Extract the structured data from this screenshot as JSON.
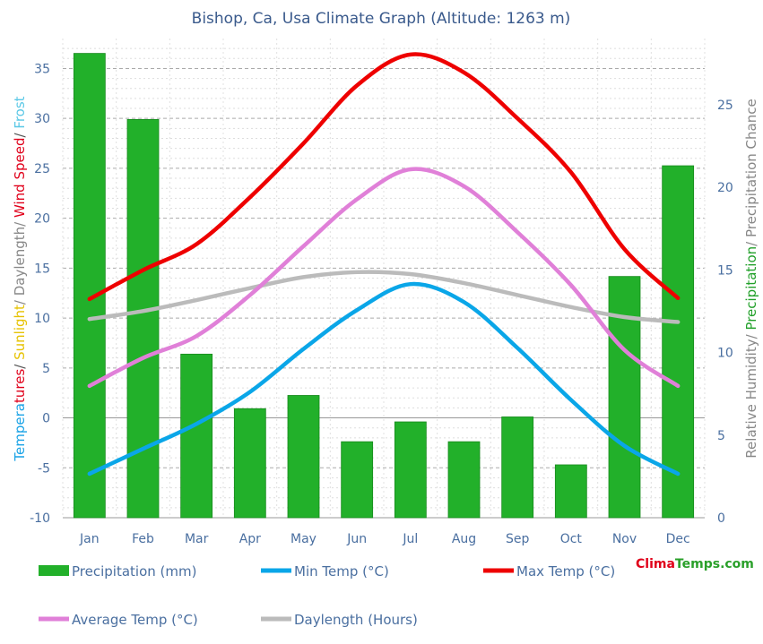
{
  "chart_data": {
    "type": "bar+line",
    "title": "Bishop, Ca, Usa Climate Graph (Altitude: 1263 m)",
    "categories": [
      "Jan",
      "Feb",
      "Mar",
      "Apr",
      "May",
      "Jun",
      "Jul",
      "Aug",
      "Sep",
      "Oct",
      "Nov",
      "Dec"
    ],
    "left_axis": {
      "label_parts": [
        {
          "text": "Tempera",
          "color": "#1aa3e6"
        },
        {
          "text": "tures",
          "color": "#e0001a"
        },
        {
          "text": "/ ",
          "color": "#555555"
        },
        {
          "text": "Sunlight",
          "color": "#e6c200"
        },
        {
          "text": "/ Daylength/ ",
          "color": "#888888"
        },
        {
          "text": "Wind Speed",
          "color": "#e0001a"
        },
        {
          "text": "/ ",
          "color": "#555555"
        },
        {
          "text": "Frost",
          "color": "#5ac8e6"
        }
      ],
      "ylim": [
        -10,
        38
      ],
      "ticks": [
        -10,
        -5,
        0,
        5,
        10,
        15,
        20,
        25,
        30,
        35
      ]
    },
    "right_axis": {
      "label_parts": [
        {
          "text": "Relative Humidity/ ",
          "color": "#888888"
        },
        {
          "text": "Precipitation",
          "color": "#22a02a"
        },
        {
          "text": "/ Precipitation Chance",
          "color": "#888888"
        }
      ],
      "ylim": [
        0,
        29
      ],
      "ticks": [
        0,
        5,
        10,
        15,
        20,
        25
      ]
    },
    "bars": {
      "name": "Precipitation (mm)",
      "color": "#22b02a",
      "values": [
        28.1,
        24.1,
        9.9,
        6.6,
        7.4,
        4.6,
        5.8,
        4.6,
        6.1,
        3.2,
        14.6,
        21.3
      ]
    },
    "series": [
      {
        "name": "Min Temp (°C)",
        "color": "#0aa6e8",
        "values": [
          -5.6,
          -3.1,
          -0.6,
          2.6,
          6.9,
          10.8,
          13.4,
          11.6,
          7.0,
          1.8,
          -2.8,
          -5.6
        ]
      },
      {
        "name": "Max Temp (°C)",
        "color": "#ee0000",
        "values": [
          11.9,
          14.8,
          17.4,
          22.1,
          27.5,
          33.3,
          36.4,
          34.6,
          30.0,
          24.6,
          16.9,
          12.0
        ]
      },
      {
        "name": "Average Temp (°C)",
        "color": "#e080d8",
        "values": [
          3.2,
          6.0,
          8.2,
          12.3,
          17.2,
          21.9,
          24.9,
          23.2,
          18.6,
          13.3,
          6.8,
          3.2
        ]
      },
      {
        "name": "Daylength (Hours)",
        "color": "#bbbbbb",
        "values": [
          9.9,
          10.7,
          11.8,
          13.0,
          14.1,
          14.6,
          14.4,
          13.5,
          12.3,
          11.1,
          10.1,
          9.6
        ]
      }
    ],
    "grid": true,
    "legend_position": "bottom"
  },
  "brand": {
    "part1": "Clima",
    "part2": "Temps",
    "part3": ".com",
    "color1": "#e0001a",
    "color2": "#2aa02a"
  }
}
